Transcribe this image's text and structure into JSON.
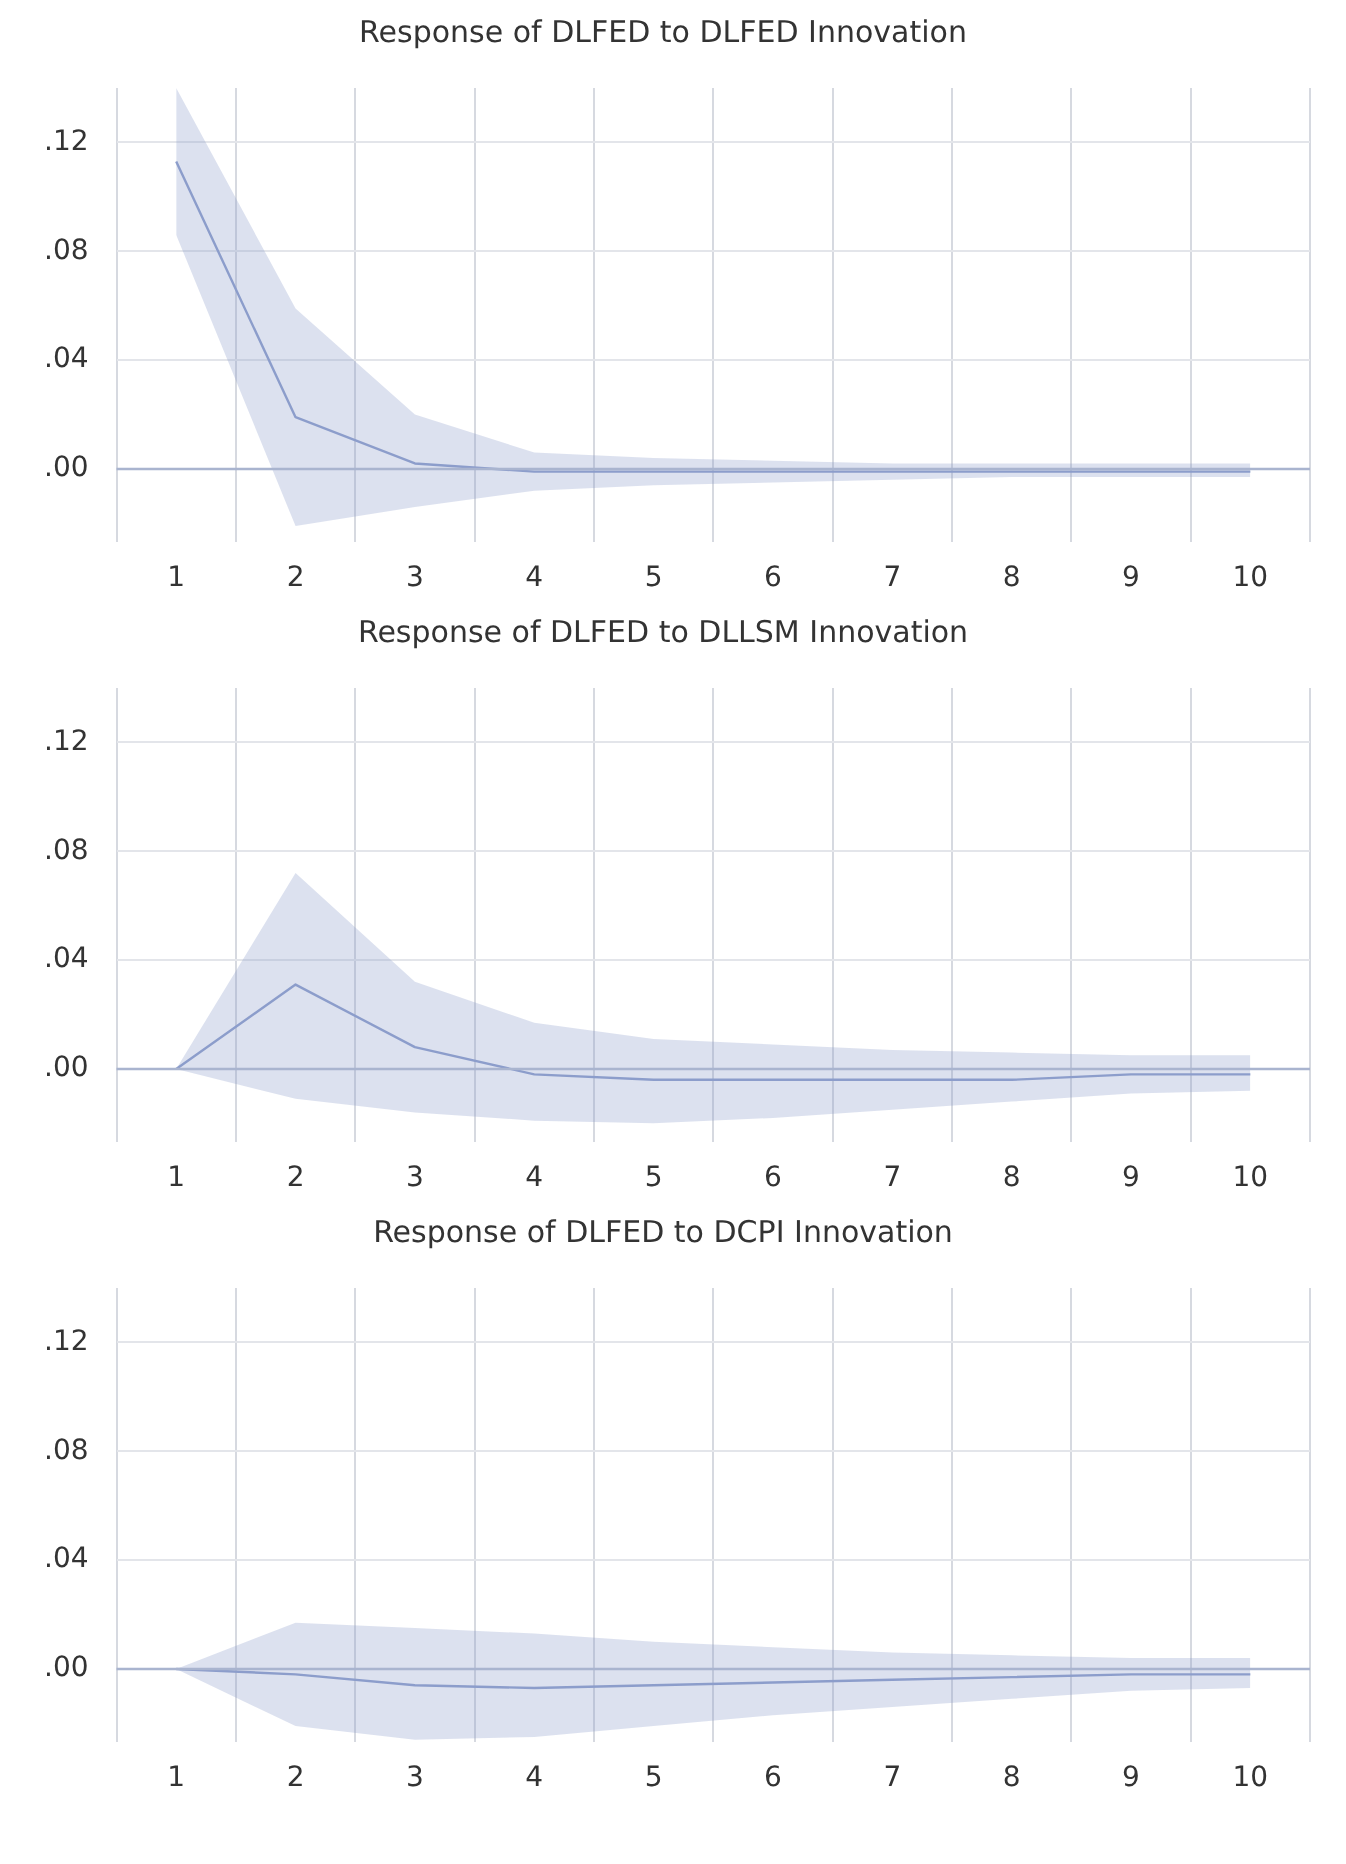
{
  "chart_data": [
    {
      "type": "line",
      "title": "Response of DLFED to DLFED Innovation",
      "categories": [
        "1",
        "2",
        "3",
        "4",
        "5",
        "6",
        "7",
        "8",
        "9",
        "10"
      ],
      "series": [
        {
          "color": "#8c9dcb",
          "values": [
            0.113,
            0.019,
            0.002,
            -0.001,
            -0.001,
            -0.001,
            -0.001,
            -0.001,
            -0.001,
            -0.001
          ],
          "lower": [
            0.086,
            -0.021,
            -0.014,
            -0.008,
            -0.006,
            -0.005,
            -0.004,
            -0.003,
            -0.003,
            -0.003
          ],
          "upper": [
            0.14,
            0.059,
            0.02,
            0.006,
            0.004,
            0.003,
            0.002,
            0.002,
            0.002,
            0.002
          ]
        }
      ],
      "ylim": [
        -0.027,
        0.14
      ],
      "yticks": [
        {
          "value": 0,
          "label": ".00"
        },
        {
          "value": 0.04,
          "label": ".04"
        },
        {
          "value": 0.08,
          "label": ".08"
        },
        {
          "value": 0.12,
          "label": ".12"
        }
      ],
      "ref_lines": [
        {
          "axis": "y",
          "value": 0,
          "color": "#a9b4cf"
        }
      ],
      "grid": true,
      "legend": false
    },
    {
      "type": "line",
      "title": "Response of DLFED to DLLSM Innovation",
      "categories": [
        "1",
        "2",
        "3",
        "4",
        "5",
        "6",
        "7",
        "8",
        "9",
        "10"
      ],
      "series": [
        {
          "color": "#8c9dcb",
          "values": [
            0,
            0.031,
            0.008,
            -0.002,
            -0.004,
            -0.004,
            -0.004,
            -0.004,
            -0.002,
            -0.002
          ],
          "lower": [
            0,
            -0.011,
            -0.016,
            -0.019,
            -0.02,
            -0.018,
            -0.015,
            -0.012,
            -0.009,
            -0.008
          ],
          "upper": [
            0,
            0.072,
            0.032,
            0.017,
            0.011,
            0.009,
            0.007,
            0.006,
            0.005,
            0.005
          ]
        }
      ],
      "ylim": [
        -0.027,
        0.14
      ],
      "yticks": [
        {
          "value": 0,
          "label": ".00"
        },
        {
          "value": 0.04,
          "label": ".04"
        },
        {
          "value": 0.08,
          "label": ".08"
        },
        {
          "value": 0.12,
          "label": ".12"
        }
      ],
      "ref_lines": [
        {
          "axis": "y",
          "value": 0,
          "color": "#a9b4cf"
        }
      ],
      "grid": true,
      "legend": false
    },
    {
      "type": "line",
      "title": "Response of DLFED to DCPI Innovation",
      "categories": [
        "1",
        "2",
        "3",
        "4",
        "5",
        "6",
        "7",
        "8",
        "9",
        "10"
      ],
      "series": [
        {
          "color": "#8c9dcb",
          "values": [
            0,
            -0.002,
            -0.006,
            -0.007,
            -0.006,
            -0.005,
            -0.004,
            -0.003,
            -0.002,
            -0.002
          ],
          "lower": [
            0,
            -0.021,
            -0.026,
            -0.025,
            -0.021,
            -0.017,
            -0.014,
            -0.011,
            -0.008,
            -0.007
          ],
          "upper": [
            0,
            0.017,
            0.015,
            0.013,
            0.01,
            0.008,
            0.006,
            0.005,
            0.004,
            0.004
          ]
        }
      ],
      "ylim": [
        -0.027,
        0.14
      ],
      "yticks": [
        {
          "value": 0,
          "label": ".00"
        },
        {
          "value": 0.04,
          "label": ".04"
        },
        {
          "value": 0.08,
          "label": ".08"
        },
        {
          "value": 0.12,
          "label": ".12"
        }
      ],
      "ref_lines": [
        {
          "axis": "y",
          "value": 0,
          "color": "#a9b4cf"
        }
      ],
      "grid": true,
      "legend": false
    }
  ]
}
